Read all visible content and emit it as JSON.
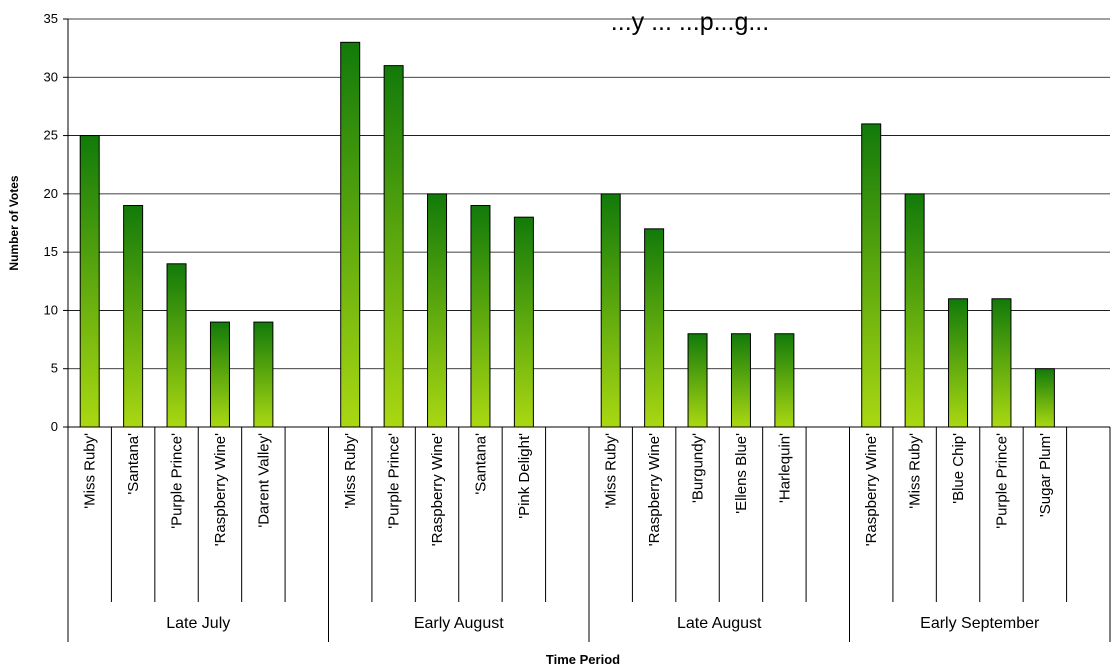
{
  "chart_data": {
    "type": "bar",
    "title": "...y ... ...p...g...",
    "xlabel": "Time Period",
    "ylabel": "Number of Votes",
    "ylim": [
      0,
      35
    ],
    "yticks": [
      0,
      5,
      10,
      15,
      20,
      25,
      30,
      35
    ],
    "grid": true,
    "legend": "none",
    "groups": [
      {
        "name": "Late July",
        "categories": [
          "'Miss Ruby'",
          "'Santana'",
          "'Purple Prince'",
          "'Raspberry Wine'",
          "'Darent Valley'"
        ],
        "values": [
          25,
          19,
          14,
          9,
          9
        ]
      },
      {
        "name": "Early August",
        "categories": [
          "'Miss Ruby'",
          "'Purple Prince'",
          "'Raspberry Wine'",
          "'Santana'",
          "'Pink Delight'"
        ],
        "values": [
          33,
          31,
          20,
          19,
          18
        ]
      },
      {
        "name": "Late August",
        "categories": [
          "'Miss Ruby'",
          "'Raspberry Wine'",
          "'Burgundy'",
          "'Ellens Blue'",
          "'Harlequin'"
        ],
        "values": [
          20,
          17,
          8,
          8,
          8
        ]
      },
      {
        "name": "Early September",
        "categories": [
          "'Raspberry Wine'",
          "'Miss Ruby'",
          "'Blue Chip'",
          "'Purple Prince'",
          "'Sugar Plum'"
        ],
        "values": [
          26,
          20,
          11,
          11,
          5
        ]
      }
    ],
    "colors": {
      "bar_top": "#127a0a",
      "bar_bottom": "#aad812",
      "bar_stroke": "#000000",
      "grid": "#000000"
    }
  }
}
